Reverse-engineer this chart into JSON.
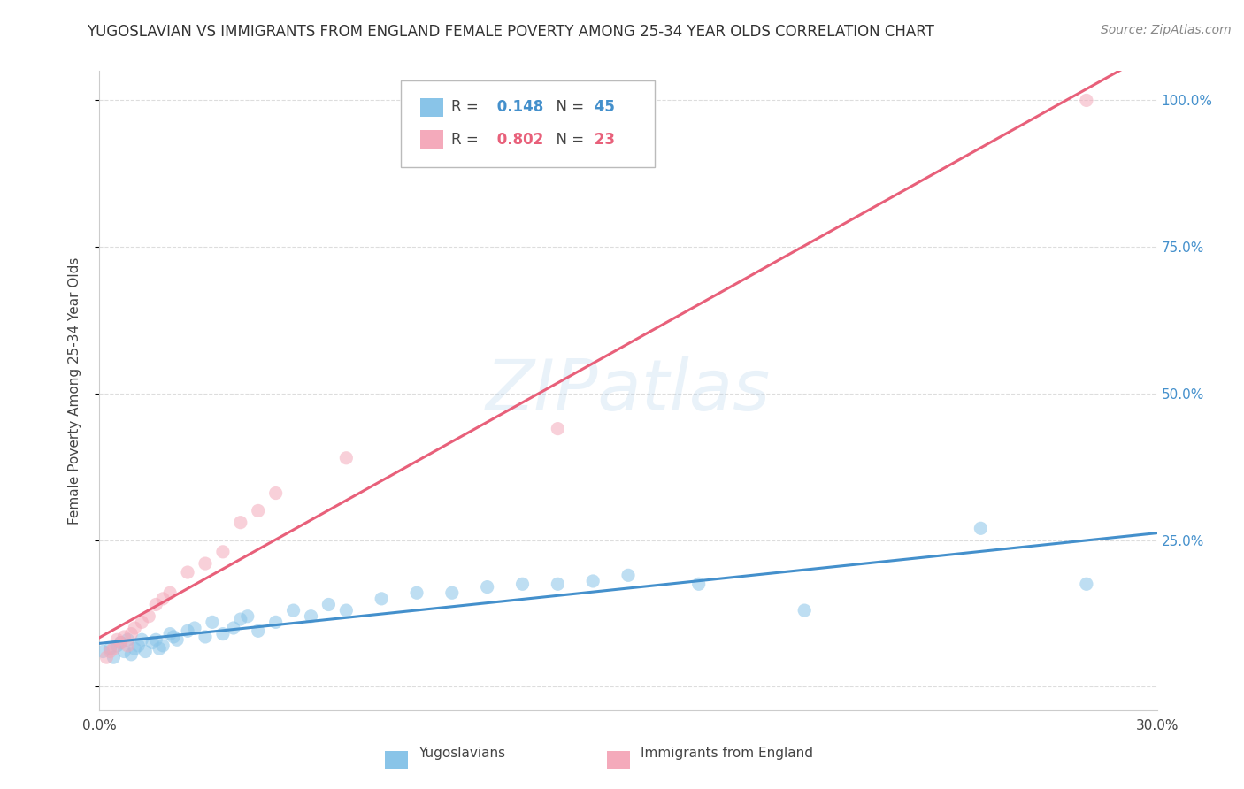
{
  "title": "YUGOSLAVIAN VS IMMIGRANTS FROM ENGLAND FEMALE POVERTY AMONG 25-34 YEAR OLDS CORRELATION CHART",
  "source": "Source: ZipAtlas.com",
  "ylabel": "Female Poverty Among 25-34 Year Olds",
  "xmin": 0.0,
  "xmax": 0.3,
  "ymin": -0.04,
  "ymax": 1.05,
  "ytick_vals": [
    0.0,
    0.25,
    0.5,
    0.75,
    1.0
  ],
  "ytick_labels_right": [
    "",
    "25.0%",
    "50.0%",
    "75.0%",
    "100.0%"
  ],
  "xtick_vals": [
    0.0,
    0.3
  ],
  "xtick_labels": [
    "0.0%",
    "30.0%"
  ],
  "watermark_text": "ZIPatlas",
  "blue_color": "#89C4E8",
  "pink_color": "#F4AABB",
  "blue_line_color": "#4490CC",
  "pink_line_color": "#E8607A",
  "blue_R": "0.148",
  "blue_N": "45",
  "pink_R": "0.802",
  "pink_N": "23",
  "blue_scatter_x": [
    0.001,
    0.003,
    0.004,
    0.005,
    0.006,
    0.007,
    0.008,
    0.009,
    0.01,
    0.011,
    0.012,
    0.013,
    0.015,
    0.016,
    0.017,
    0.018,
    0.02,
    0.021,
    0.022,
    0.025,
    0.027,
    0.03,
    0.032,
    0.035,
    0.038,
    0.04,
    0.042,
    0.045,
    0.05,
    0.055,
    0.06,
    0.065,
    0.07,
    0.08,
    0.09,
    0.1,
    0.11,
    0.12,
    0.13,
    0.14,
    0.15,
    0.17,
    0.2,
    0.25,
    0.28
  ],
  "blue_scatter_y": [
    0.06,
    0.065,
    0.05,
    0.07,
    0.075,
    0.06,
    0.08,
    0.055,
    0.065,
    0.07,
    0.08,
    0.06,
    0.075,
    0.08,
    0.065,
    0.07,
    0.09,
    0.085,
    0.08,
    0.095,
    0.1,
    0.085,
    0.11,
    0.09,
    0.1,
    0.115,
    0.12,
    0.095,
    0.11,
    0.13,
    0.12,
    0.14,
    0.13,
    0.15,
    0.16,
    0.16,
    0.17,
    0.175,
    0.175,
    0.18,
    0.19,
    0.175,
    0.13,
    0.27,
    0.175
  ],
  "pink_scatter_x": [
    0.002,
    0.003,
    0.004,
    0.005,
    0.006,
    0.007,
    0.008,
    0.009,
    0.01,
    0.012,
    0.014,
    0.016,
    0.018,
    0.02,
    0.025,
    0.03,
    0.035,
    0.04,
    0.045,
    0.05,
    0.07,
    0.13,
    0.28
  ],
  "pink_scatter_y": [
    0.05,
    0.06,
    0.065,
    0.08,
    0.075,
    0.085,
    0.07,
    0.09,
    0.1,
    0.11,
    0.12,
    0.14,
    0.15,
    0.16,
    0.195,
    0.21,
    0.23,
    0.28,
    0.3,
    0.33,
    0.39,
    0.44,
    1.0
  ],
  "background_color": "#FFFFFF",
  "grid_color": "#DDDDDD",
  "title_fontsize": 12,
  "axis_label_fontsize": 11,
  "tick_fontsize": 11,
  "legend_label_blue": "Yugoslavians",
  "legend_label_pink": "Immigrants from England"
}
